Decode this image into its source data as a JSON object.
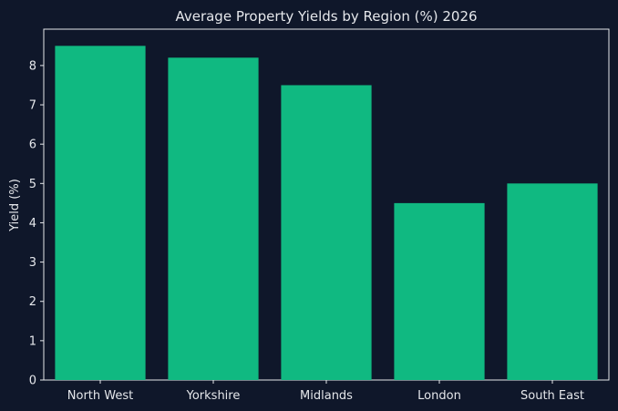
{
  "chart_data": {
    "type": "bar",
    "title": "Average Property Yields by Region (%) 2026",
    "categories": [
      "North West",
      "Yorkshire",
      "Midlands",
      "London",
      "South East"
    ],
    "values": [
      8.5,
      8.2,
      7.5,
      4.5,
      5.0
    ],
    "xlabel": "",
    "ylabel": "Yield (%)",
    "ylim": [
      0,
      8.925
    ],
    "yticks": [
      0,
      1,
      2,
      3,
      4,
      5,
      6,
      7,
      8
    ],
    "grid": false,
    "colors": {
      "background": "#0f172a",
      "bar": "#10b981",
      "text": "#e5e7eb",
      "axis": "#e5e7eb"
    }
  }
}
